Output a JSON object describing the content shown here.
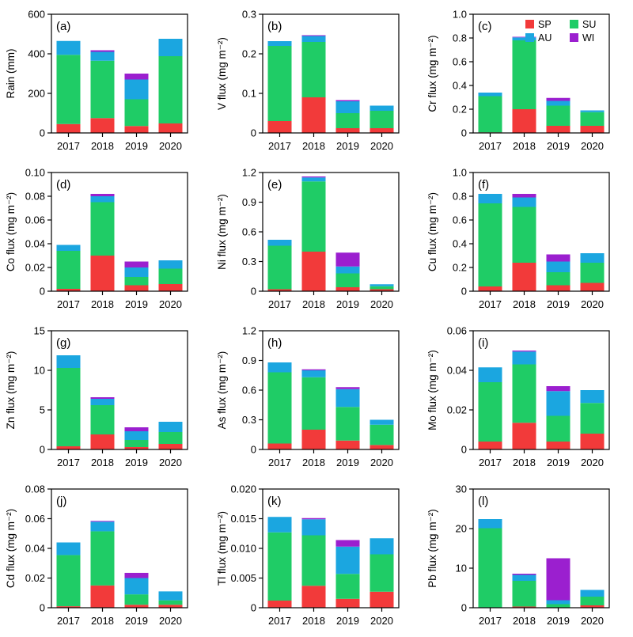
{
  "colors": {
    "SP": "#f23a3a",
    "SU": "#1fcc66",
    "AU": "#1ba6e0",
    "WI": "#9b1fcf"
  },
  "legend": [
    {
      "key": "SP",
      "label": "SP"
    },
    {
      "key": "SU",
      "label": "SU"
    },
    {
      "key": "AU",
      "label": "AU"
    },
    {
      "key": "WI",
      "label": "WI"
    }
  ],
  "chart_data": [
    {
      "panel": "(a)",
      "type": "bar",
      "stacked": true,
      "ylabel": "Rain (mm)",
      "ylim": [
        0,
        600
      ],
      "yticks": [
        "0",
        "200",
        "400",
        "600"
      ],
      "categories": [
        "2017",
        "2018",
        "2019",
        "2020"
      ],
      "series": [
        {
          "name": "SP",
          "values": [
            45,
            75,
            35,
            48
          ]
        },
        {
          "name": "SU",
          "values": [
            350,
            290,
            135,
            340
          ]
        },
        {
          "name": "AU",
          "values": [
            70,
            45,
            100,
            88
          ]
        },
        {
          "name": "WI",
          "values": [
            0,
            8,
            30,
            0
          ]
        }
      ]
    },
    {
      "panel": "(b)",
      "type": "bar",
      "stacked": true,
      "ylabel": "V flux (mg m⁻²)",
      "ylim": [
        0,
        0.3
      ],
      "yticks": [
        "0",
        "0.1",
        "0.2",
        "0.3"
      ],
      "categories": [
        "2017",
        "2018",
        "2019",
        "2020"
      ],
      "series": [
        {
          "name": "SP",
          "values": [
            0.03,
            0.09,
            0.012,
            0.012
          ]
        },
        {
          "name": "SU",
          "values": [
            0.19,
            0.14,
            0.038,
            0.044
          ]
        },
        {
          "name": "AU",
          "values": [
            0.012,
            0.015,
            0.03,
            0.013
          ]
        },
        {
          "name": "WI",
          "values": [
            0,
            0.002,
            0.003,
            0
          ]
        }
      ]
    },
    {
      "panel": "(c)",
      "type": "bar",
      "stacked": true,
      "ylabel": "Cr flux (mg m⁻²)",
      "ylim": [
        0,
        1.0
      ],
      "yticks": [
        "0",
        "0.2",
        "0.4",
        "0.6",
        "0.8",
        "1.0"
      ],
      "categories": [
        "2017",
        "2018",
        "2019",
        "2020"
      ],
      "series": [
        {
          "name": "SP",
          "values": [
            0.005,
            0.2,
            0.06,
            0.06
          ]
        },
        {
          "name": "SU",
          "values": [
            0.305,
            0.58,
            0.17,
            0.115
          ]
        },
        {
          "name": "AU",
          "values": [
            0.03,
            0.025,
            0.04,
            0.015
          ]
        },
        {
          "name": "WI",
          "values": [
            0,
            0.005,
            0.025,
            0
          ]
        }
      ]
    },
    {
      "panel": "(d)",
      "type": "bar",
      "stacked": true,
      "ylabel": "Co flux (mg m⁻²)",
      "ylim": [
        0,
        0.1
      ],
      "yticks": [
        "0",
        "0.02",
        "0.04",
        "0.06",
        "0.08",
        "0.10"
      ],
      "categories": [
        "2017",
        "2018",
        "2019",
        "2020"
      ],
      "series": [
        {
          "name": "SP",
          "values": [
            0.002,
            0.03,
            0.005,
            0.006
          ]
        },
        {
          "name": "SU",
          "values": [
            0.032,
            0.045,
            0.007,
            0.013
          ]
        },
        {
          "name": "AU",
          "values": [
            0.005,
            0.005,
            0.008,
            0.007
          ]
        },
        {
          "name": "WI",
          "values": [
            0,
            0.002,
            0.005,
            0
          ]
        }
      ]
    },
    {
      "panel": "(e)",
      "type": "bar",
      "stacked": true,
      "ylabel": "Ni flux (mg m⁻²)",
      "ylim": [
        0,
        1.2
      ],
      "yticks": [
        "0",
        "0.3",
        "0.6",
        "0.9",
        "1.2"
      ],
      "categories": [
        "2017",
        "2018",
        "2019",
        "2020"
      ],
      "series": [
        {
          "name": "SP",
          "values": [
            0.02,
            0.4,
            0.04,
            0.02
          ]
        },
        {
          "name": "SU",
          "values": [
            0.44,
            0.71,
            0.14,
            0.03
          ]
        },
        {
          "name": "AU",
          "values": [
            0.06,
            0.04,
            0.07,
            0.02
          ]
        },
        {
          "name": "WI",
          "values": [
            0,
            0.01,
            0.14,
            0
          ]
        }
      ]
    },
    {
      "panel": "(f)",
      "type": "bar",
      "stacked": true,
      "ylabel": "Cu flux (mg m⁻²)",
      "ylim": [
        0,
        1.0
      ],
      "yticks": [
        "0",
        "0.2",
        "0.4",
        "0.6",
        "0.8",
        "1.0"
      ],
      "categories": [
        "2017",
        "2018",
        "2019",
        "2020"
      ],
      "series": [
        {
          "name": "SP",
          "values": [
            0.04,
            0.24,
            0.05,
            0.07
          ]
        },
        {
          "name": "SU",
          "values": [
            0.7,
            0.47,
            0.11,
            0.17
          ]
        },
        {
          "name": "AU",
          "values": [
            0.08,
            0.08,
            0.09,
            0.08
          ]
        },
        {
          "name": "WI",
          "values": [
            0,
            0.03,
            0.06,
            0
          ]
        }
      ]
    },
    {
      "panel": "(g)",
      "type": "bar",
      "stacked": true,
      "ylabel": "Zn flux (mg m⁻²)",
      "ylim": [
        0,
        15
      ],
      "yticks": [
        "0",
        "5",
        "10",
        "15"
      ],
      "categories": [
        "2017",
        "2018",
        "2019",
        "2020"
      ],
      "series": [
        {
          "name": "SP",
          "values": [
            0.4,
            1.9,
            0.3,
            0.7
          ]
        },
        {
          "name": "SU",
          "values": [
            9.9,
            3.7,
            0.9,
            1.5
          ]
        },
        {
          "name": "AU",
          "values": [
            1.6,
            0.8,
            1.1,
            1.3
          ]
        },
        {
          "name": "WI",
          "values": [
            0,
            0.2,
            0.5,
            0
          ]
        }
      ]
    },
    {
      "panel": "(h)",
      "type": "bar",
      "stacked": true,
      "ylabel": "As flux (mg m⁻²)",
      "ylim": [
        0,
        1.2
      ],
      "yticks": [
        "0",
        "0.3",
        "0.6",
        "0.9",
        "1.2"
      ],
      "categories": [
        "2017",
        "2018",
        "2019",
        "2020"
      ],
      "series": [
        {
          "name": "SP",
          "values": [
            0.06,
            0.2,
            0.09,
            0.045
          ]
        },
        {
          "name": "SU",
          "values": [
            0.72,
            0.53,
            0.34,
            0.205
          ]
        },
        {
          "name": "AU",
          "values": [
            0.1,
            0.07,
            0.18,
            0.05
          ]
        },
        {
          "name": "WI",
          "values": [
            0,
            0.01,
            0.02,
            0
          ]
        }
      ]
    },
    {
      "panel": "(i)",
      "type": "bar",
      "stacked": true,
      "ylabel": "Mo flux (mg m⁻²)",
      "ylim": [
        0,
        0.06
      ],
      "yticks": [
        "0",
        "0.02",
        "0.04",
        "0.06"
      ],
      "categories": [
        "2017",
        "2018",
        "2019",
        "2020"
      ],
      "series": [
        {
          "name": "SP",
          "values": [
            0.004,
            0.0135,
            0.004,
            0.008
          ]
        },
        {
          "name": "SU",
          "values": [
            0.03,
            0.0295,
            0.013,
            0.0155
          ]
        },
        {
          "name": "AU",
          "values": [
            0.0075,
            0.0065,
            0.0125,
            0.0065
          ]
        },
        {
          "name": "WI",
          "values": [
            0,
            0.0005,
            0.0025,
            0
          ]
        }
      ]
    },
    {
      "panel": "(j)",
      "type": "bar",
      "stacked": true,
      "ylabel": "Cd flux (mg m⁻²)",
      "ylim": [
        0,
        0.08
      ],
      "yticks": [
        "0",
        "0.02",
        "0.04",
        "0.06",
        "0.08"
      ],
      "categories": [
        "2017",
        "2018",
        "2019",
        "2020"
      ],
      "series": [
        {
          "name": "SP",
          "values": [
            0.001,
            0.015,
            0.002,
            0.002
          ]
        },
        {
          "name": "SU",
          "values": [
            0.0345,
            0.0365,
            0.007,
            0.003
          ]
        },
        {
          "name": "AU",
          "values": [
            0.0085,
            0.0065,
            0.011,
            0.006
          ]
        },
        {
          "name": "WI",
          "values": [
            0,
            0.0005,
            0.0035,
            0
          ]
        }
      ]
    },
    {
      "panel": "(k)",
      "type": "bar",
      "stacked": true,
      "ylabel": "Tl flux (mg m⁻²)",
      "ylim": [
        0,
        0.02
      ],
      "yticks": [
        "0",
        "0.005",
        "0.010",
        "0.015",
        "0.020"
      ],
      "categories": [
        "2017",
        "2018",
        "2019",
        "2020"
      ],
      "series": [
        {
          "name": "SP",
          "values": [
            0.0012,
            0.0037,
            0.0015,
            0.0027
          ]
        },
        {
          "name": "SU",
          "values": [
            0.0115,
            0.0085,
            0.0042,
            0.0063
          ]
        },
        {
          "name": "AU",
          "values": [
            0.0026,
            0.0027,
            0.0046,
            0.0027
          ]
        },
        {
          "name": "WI",
          "values": [
            0,
            0.0002,
            0.0011,
            0
          ]
        }
      ]
    },
    {
      "panel": "(l)",
      "type": "bar",
      "stacked": true,
      "ylabel": "Pb flux (mg m⁻²)",
      "ylim": [
        0,
        30
      ],
      "yticks": [
        "0",
        "10",
        "20",
        "30"
      ],
      "categories": [
        "2017",
        "2018",
        "2019",
        "2020"
      ],
      "series": [
        {
          "name": "SP",
          "values": [
            0.1,
            0.3,
            0.1,
            0.6
          ]
        },
        {
          "name": "SU",
          "values": [
            20,
            6.5,
            0.8,
            2.2
          ]
        },
        {
          "name": "AU",
          "values": [
            2.3,
            1.5,
            1.0,
            1.7
          ]
        },
        {
          "name": "WI",
          "values": [
            0,
            0.3,
            10.6,
            0
          ]
        }
      ]
    }
  ]
}
